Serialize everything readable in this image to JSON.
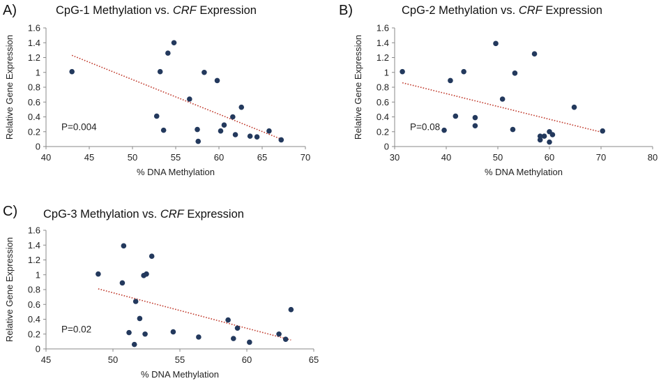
{
  "chart_data": [
    {
      "type": "scatter",
      "panel_label": "A)",
      "title_prefix": "CpG-1 Methylation vs. ",
      "title_gene": "CRF",
      "title_suffix": " Expression",
      "xlabel": "% DNA Methylation",
      "ylabel": "Relative Gene Expression",
      "xlim": [
        40,
        70
      ],
      "ylim": [
        0,
        1.6
      ],
      "xticks": [
        40,
        45,
        50,
        55,
        60,
        65,
        70
      ],
      "yticks": [
        0,
        0.2,
        0.4,
        0.6,
        0.8,
        1,
        1.2,
        1.4,
        1.6
      ],
      "annotation": "P=0.004",
      "trendline": {
        "x1": 43,
        "y1": 1.23,
        "x2": 67.2,
        "y2": 0.1
      },
      "points": [
        {
          "x": 43,
          "y": 1.01
        },
        {
          "x": 54.8,
          "y": 1.4
        },
        {
          "x": 54.1,
          "y": 1.26
        },
        {
          "x": 53.2,
          "y": 1.01
        },
        {
          "x": 58.3,
          "y": 1.0
        },
        {
          "x": 59.8,
          "y": 0.89
        },
        {
          "x": 56.6,
          "y": 0.64
        },
        {
          "x": 62.6,
          "y": 0.53
        },
        {
          "x": 52.8,
          "y": 0.41
        },
        {
          "x": 61.6,
          "y": 0.4
        },
        {
          "x": 60.6,
          "y": 0.29
        },
        {
          "x": 53.6,
          "y": 0.22
        },
        {
          "x": 57.5,
          "y": 0.23
        },
        {
          "x": 60.2,
          "y": 0.21
        },
        {
          "x": 65.8,
          "y": 0.21
        },
        {
          "x": 61.9,
          "y": 0.16
        },
        {
          "x": 63.6,
          "y": 0.14
        },
        {
          "x": 64.4,
          "y": 0.13
        },
        {
          "x": 67.2,
          "y": 0.09
        },
        {
          "x": 57.6,
          "y": 0.07
        }
      ]
    },
    {
      "type": "scatter",
      "panel_label": "B)",
      "title_prefix": "CpG-2 Methylation vs. ",
      "title_gene": "CRF",
      "title_suffix": " Expression",
      "xlabel": "% DNA Methylation",
      "ylabel": "Relative Gene Expression",
      "xlim": [
        30,
        80
      ],
      "ylim": [
        0,
        1.6
      ],
      "xticks": [
        30,
        40,
        50,
        60,
        70,
        80
      ],
      "yticks": [
        0,
        0.2,
        0.4,
        0.6,
        0.8,
        1,
        1.2,
        1.4,
        1.6
      ],
      "annotation": "P=0.08",
      "trendline": {
        "x1": 31.5,
        "y1": 0.86,
        "x2": 70.3,
        "y2": 0.19
      },
      "points": [
        {
          "x": 31.5,
          "y": 1.01
        },
        {
          "x": 49.6,
          "y": 1.39
        },
        {
          "x": 57.1,
          "y": 1.25
        },
        {
          "x": 43.4,
          "y": 1.01
        },
        {
          "x": 53.3,
          "y": 0.99
        },
        {
          "x": 40.8,
          "y": 0.89
        },
        {
          "x": 50.9,
          "y": 0.64
        },
        {
          "x": 64.8,
          "y": 0.53
        },
        {
          "x": 41.8,
          "y": 0.41
        },
        {
          "x": 45.6,
          "y": 0.39
        },
        {
          "x": 45.6,
          "y": 0.28
        },
        {
          "x": 39.6,
          "y": 0.22
        },
        {
          "x": 52.9,
          "y": 0.23
        },
        {
          "x": 70.3,
          "y": 0.21
        },
        {
          "x": 60.0,
          "y": 0.2
        },
        {
          "x": 60.6,
          "y": 0.16
        },
        {
          "x": 58.2,
          "y": 0.14
        },
        {
          "x": 59.0,
          "y": 0.14
        },
        {
          "x": 58.2,
          "y": 0.09
        },
        {
          "x": 60.0,
          "y": 0.06
        }
      ]
    },
    {
      "type": "scatter",
      "panel_label": "C)",
      "title_prefix": "CpG-3 Methylation vs. ",
      "title_gene": "CRF",
      "title_suffix": " Expression",
      "xlabel": "% DNA Methylation",
      "ylabel": "Relative Gene Expression",
      "xlim": [
        45,
        65
      ],
      "ylim": [
        0,
        1.6
      ],
      "xticks": [
        45,
        50,
        55,
        60,
        65
      ],
      "yticks": [
        0,
        0.2,
        0.4,
        0.6,
        0.8,
        1,
        1.2,
        1.4,
        1.6
      ],
      "annotation": "P=0.02",
      "trendline": {
        "x1": 48.9,
        "y1": 0.81,
        "x2": 63.3,
        "y2": 0.12
      },
      "points": [
        {
          "x": 48.9,
          "y": 1.01
        },
        {
          "x": 50.8,
          "y": 1.39
        },
        {
          "x": 52.9,
          "y": 1.25
        },
        {
          "x": 52.3,
          "y": 0.99
        },
        {
          "x": 52.5,
          "y": 1.01
        },
        {
          "x": 50.7,
          "y": 0.89
        },
        {
          "x": 51.7,
          "y": 0.64
        },
        {
          "x": 63.3,
          "y": 0.53
        },
        {
          "x": 52.0,
          "y": 0.41
        },
        {
          "x": 58.6,
          "y": 0.39
        },
        {
          "x": 59.3,
          "y": 0.28
        },
        {
          "x": 51.2,
          "y": 0.22
        },
        {
          "x": 54.5,
          "y": 0.23
        },
        {
          "x": 52.4,
          "y": 0.2
        },
        {
          "x": 62.4,
          "y": 0.2
        },
        {
          "x": 56.4,
          "y": 0.16
        },
        {
          "x": 59.0,
          "y": 0.14
        },
        {
          "x": 62.9,
          "y": 0.13
        },
        {
          "x": 60.2,
          "y": 0.09
        },
        {
          "x": 51.6,
          "y": 0.06
        }
      ]
    }
  ]
}
